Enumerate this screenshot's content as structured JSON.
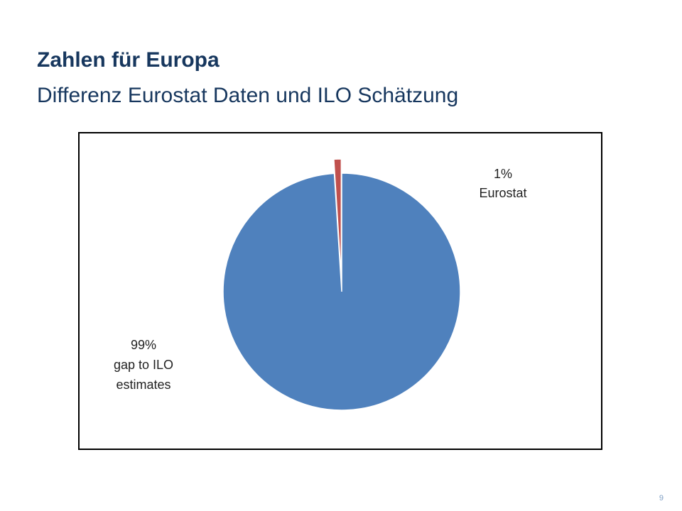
{
  "header": {
    "title": "Zahlen für Europa",
    "subtitle": "Differenz Eurostat Daten und ILO Schätzung"
  },
  "chart_data": {
    "type": "pie",
    "title": "",
    "start_angle_deg": -3.6,
    "legend": "none",
    "slices": [
      {
        "label": "Eurostat",
        "value": 1,
        "value_label": "1%",
        "color": "#c0504d",
        "exploded": true
      },
      {
        "label": "gap to ILO estimates",
        "value": 99,
        "value_label": "99%",
        "color": "#4f81bd",
        "exploded": false
      }
    ]
  },
  "footer": {
    "page_number": "9"
  }
}
